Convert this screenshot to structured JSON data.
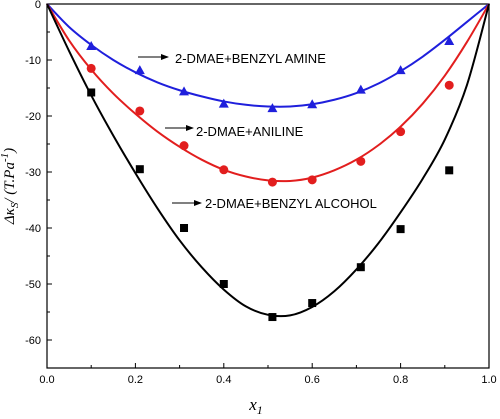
{
  "chart_data": {
    "type": "scatter",
    "title": "",
    "xlabel": "x",
    "xlabel_sub": "1",
    "ylabel_main": "Δκ",
    "ylabel_sub": "S",
    "ylabel_unit_pre": "/ (T.Pa",
    "ylabel_unit_sup": "-1",
    "ylabel_unit_post": ")",
    "xlim": [
      0,
      1.0
    ],
    "ylim": [
      -65,
      0
    ],
    "xticks": [
      "0.0",
      "0.2",
      "0.4",
      "0.6",
      "0.8",
      "1.0"
    ],
    "xtick_values": [
      0,
      0.2,
      0.4,
      0.6,
      0.8,
      1.0
    ],
    "yticks": [
      "0",
      "-10",
      "-20",
      "-30",
      "-40",
      "-50",
      "-60"
    ],
    "ytick_values": [
      0,
      -10,
      -20,
      -30,
      -40,
      -50,
      -60
    ],
    "grid": false,
    "series": [
      {
        "name": "2-DMAE+BENZYL AMINE",
        "color": "#1f1fdc",
        "marker": "triangle",
        "points": [
          [
            0,
            0
          ],
          [
            0.1,
            -7.5
          ],
          [
            0.21,
            -11.8
          ],
          [
            0.31,
            -15.6
          ],
          [
            0.4,
            -17.8
          ],
          [
            0.51,
            -18.6
          ],
          [
            0.6,
            -17.9
          ],
          [
            0.71,
            -15.3
          ],
          [
            0.8,
            -11.8
          ],
          [
            0.91,
            -6.6
          ],
          [
            1.0,
            0
          ]
        ],
        "fit": [
          [
            0,
            0
          ],
          [
            0.05,
            -4.1
          ],
          [
            0.1,
            -7.3
          ],
          [
            0.15,
            -10.0
          ],
          [
            0.2,
            -12.2
          ],
          [
            0.25,
            -14.0
          ],
          [
            0.3,
            -15.4
          ],
          [
            0.35,
            -16.5
          ],
          [
            0.4,
            -17.4
          ],
          [
            0.45,
            -18.0
          ],
          [
            0.5,
            -18.3
          ],
          [
            0.55,
            -18.3
          ],
          [
            0.6,
            -17.9
          ],
          [
            0.65,
            -17.1
          ],
          [
            0.7,
            -15.9
          ],
          [
            0.75,
            -14.2
          ],
          [
            0.8,
            -12.0
          ],
          [
            0.85,
            -9.4
          ],
          [
            0.9,
            -6.4
          ],
          [
            0.95,
            -3.2
          ],
          [
            1.0,
            0
          ]
        ]
      },
      {
        "name": "2-DMAE+ANILINE",
        "color": "#e21e1e",
        "marker": "circle",
        "points": [
          [
            0,
            0
          ],
          [
            0.1,
            -11.5
          ],
          [
            0.21,
            -19.1
          ],
          [
            0.31,
            -25.3
          ],
          [
            0.4,
            -29.6
          ],
          [
            0.51,
            -31.8
          ],
          [
            0.6,
            -31.4
          ],
          [
            0.71,
            -28.1
          ],
          [
            0.8,
            -22.8
          ],
          [
            0.91,
            -14.5
          ],
          [
            1.0,
            0
          ]
        ],
        "fit": [
          [
            0,
            0
          ],
          [
            0.05,
            -6.5
          ],
          [
            0.1,
            -11.7
          ],
          [
            0.15,
            -16.0
          ],
          [
            0.2,
            -19.6
          ],
          [
            0.25,
            -22.8
          ],
          [
            0.3,
            -25.5
          ],
          [
            0.35,
            -27.8
          ],
          [
            0.4,
            -29.6
          ],
          [
            0.45,
            -30.8
          ],
          [
            0.5,
            -31.5
          ],
          [
            0.55,
            -31.6
          ],
          [
            0.6,
            -31.0
          ],
          [
            0.65,
            -29.7
          ],
          [
            0.7,
            -27.8
          ],
          [
            0.75,
            -25.2
          ],
          [
            0.8,
            -21.9
          ],
          [
            0.85,
            -17.8
          ],
          [
            0.9,
            -12.8
          ],
          [
            0.95,
            -6.8
          ],
          [
            1.0,
            0
          ]
        ]
      },
      {
        "name": "2-DMAE+BENZYL ALCOHOL",
        "color": "#000000",
        "marker": "square",
        "points": [
          [
            0,
            0
          ],
          [
            0.1,
            -15.8
          ],
          [
            0.21,
            -29.5
          ],
          [
            0.31,
            -40.0
          ],
          [
            0.4,
            -50.0
          ],
          [
            0.51,
            -55.9
          ],
          [
            0.6,
            -53.4
          ],
          [
            0.71,
            -47.0
          ],
          [
            0.8,
            -40.2
          ],
          [
            0.91,
            -29.7
          ],
          [
            1.0,
            0
          ]
        ],
        "fit": [
          [
            0,
            0
          ],
          [
            0.05,
            -8.4
          ],
          [
            0.1,
            -16.3
          ],
          [
            0.15,
            -23.5
          ],
          [
            0.2,
            -30.2
          ],
          [
            0.25,
            -36.5
          ],
          [
            0.3,
            -42.2
          ],
          [
            0.35,
            -47.0
          ],
          [
            0.4,
            -51.0
          ],
          [
            0.45,
            -54.0
          ],
          [
            0.5,
            -55.5
          ],
          [
            0.55,
            -55.6
          ],
          [
            0.6,
            -54.1
          ],
          [
            0.65,
            -51.3
          ],
          [
            0.7,
            -47.4
          ],
          [
            0.75,
            -42.7
          ],
          [
            0.8,
            -37.2
          ],
          [
            0.85,
            -31.2
          ],
          [
            0.9,
            -24.2
          ],
          [
            0.95,
            -14.5
          ],
          [
            1.0,
            0
          ]
        ]
      }
    ],
    "annotations": [
      {
        "text": "2-DMAE+BENZYL AMINE",
        "series": 0
      },
      {
        "text": "2-DMAE+ANILINE",
        "series": 1
      },
      {
        "text": "2-DMAE+BENZYL ALCOHOL",
        "series": 2
      }
    ]
  }
}
